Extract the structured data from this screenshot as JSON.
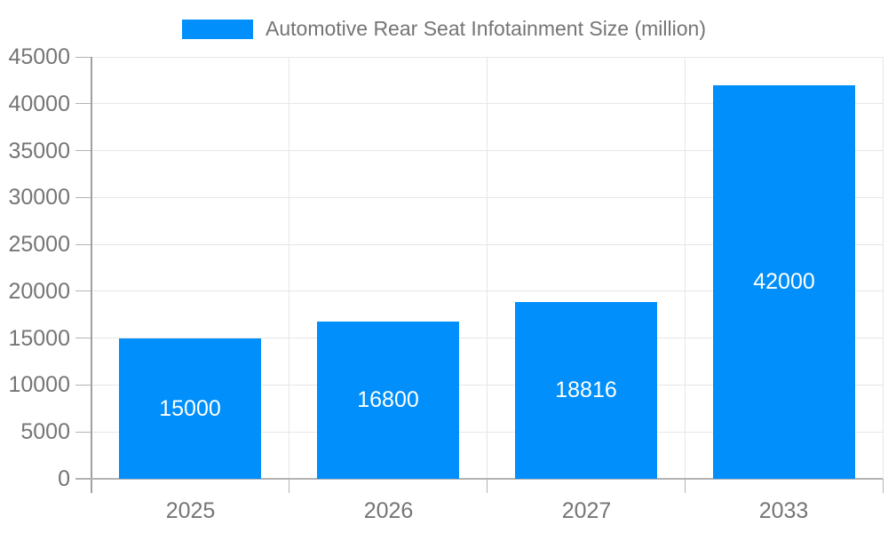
{
  "chart_data": {
    "type": "bar",
    "title": "Automotive Rear Seat Infotainment Size (million)",
    "categories": [
      "2025",
      "2026",
      "2027",
      "2033"
    ],
    "values": [
      15000,
      16800,
      18816,
      42000
    ],
    "value_labels": [
      "15000",
      "16800",
      "18816",
      "42000"
    ],
    "xlabel": "",
    "ylabel": "",
    "ylim": [
      0,
      45000
    ],
    "yticks": [
      0,
      5000,
      10000,
      15000,
      20000,
      25000,
      30000,
      35000,
      40000,
      45000
    ],
    "grid": true,
    "legend_position": "top",
    "bar_color": "#008FFB",
    "value_label_color": "#ffffff"
  },
  "colors": {
    "background": "#ffffff",
    "bar": "#008FFB",
    "title_text": "#757575",
    "tick_text": "#757575",
    "gridline": "#e6e6e6",
    "axis_line_x": "#b3b3b3",
    "axis_line_y": "#a0a0a0",
    "value_label": "#ffffff"
  }
}
